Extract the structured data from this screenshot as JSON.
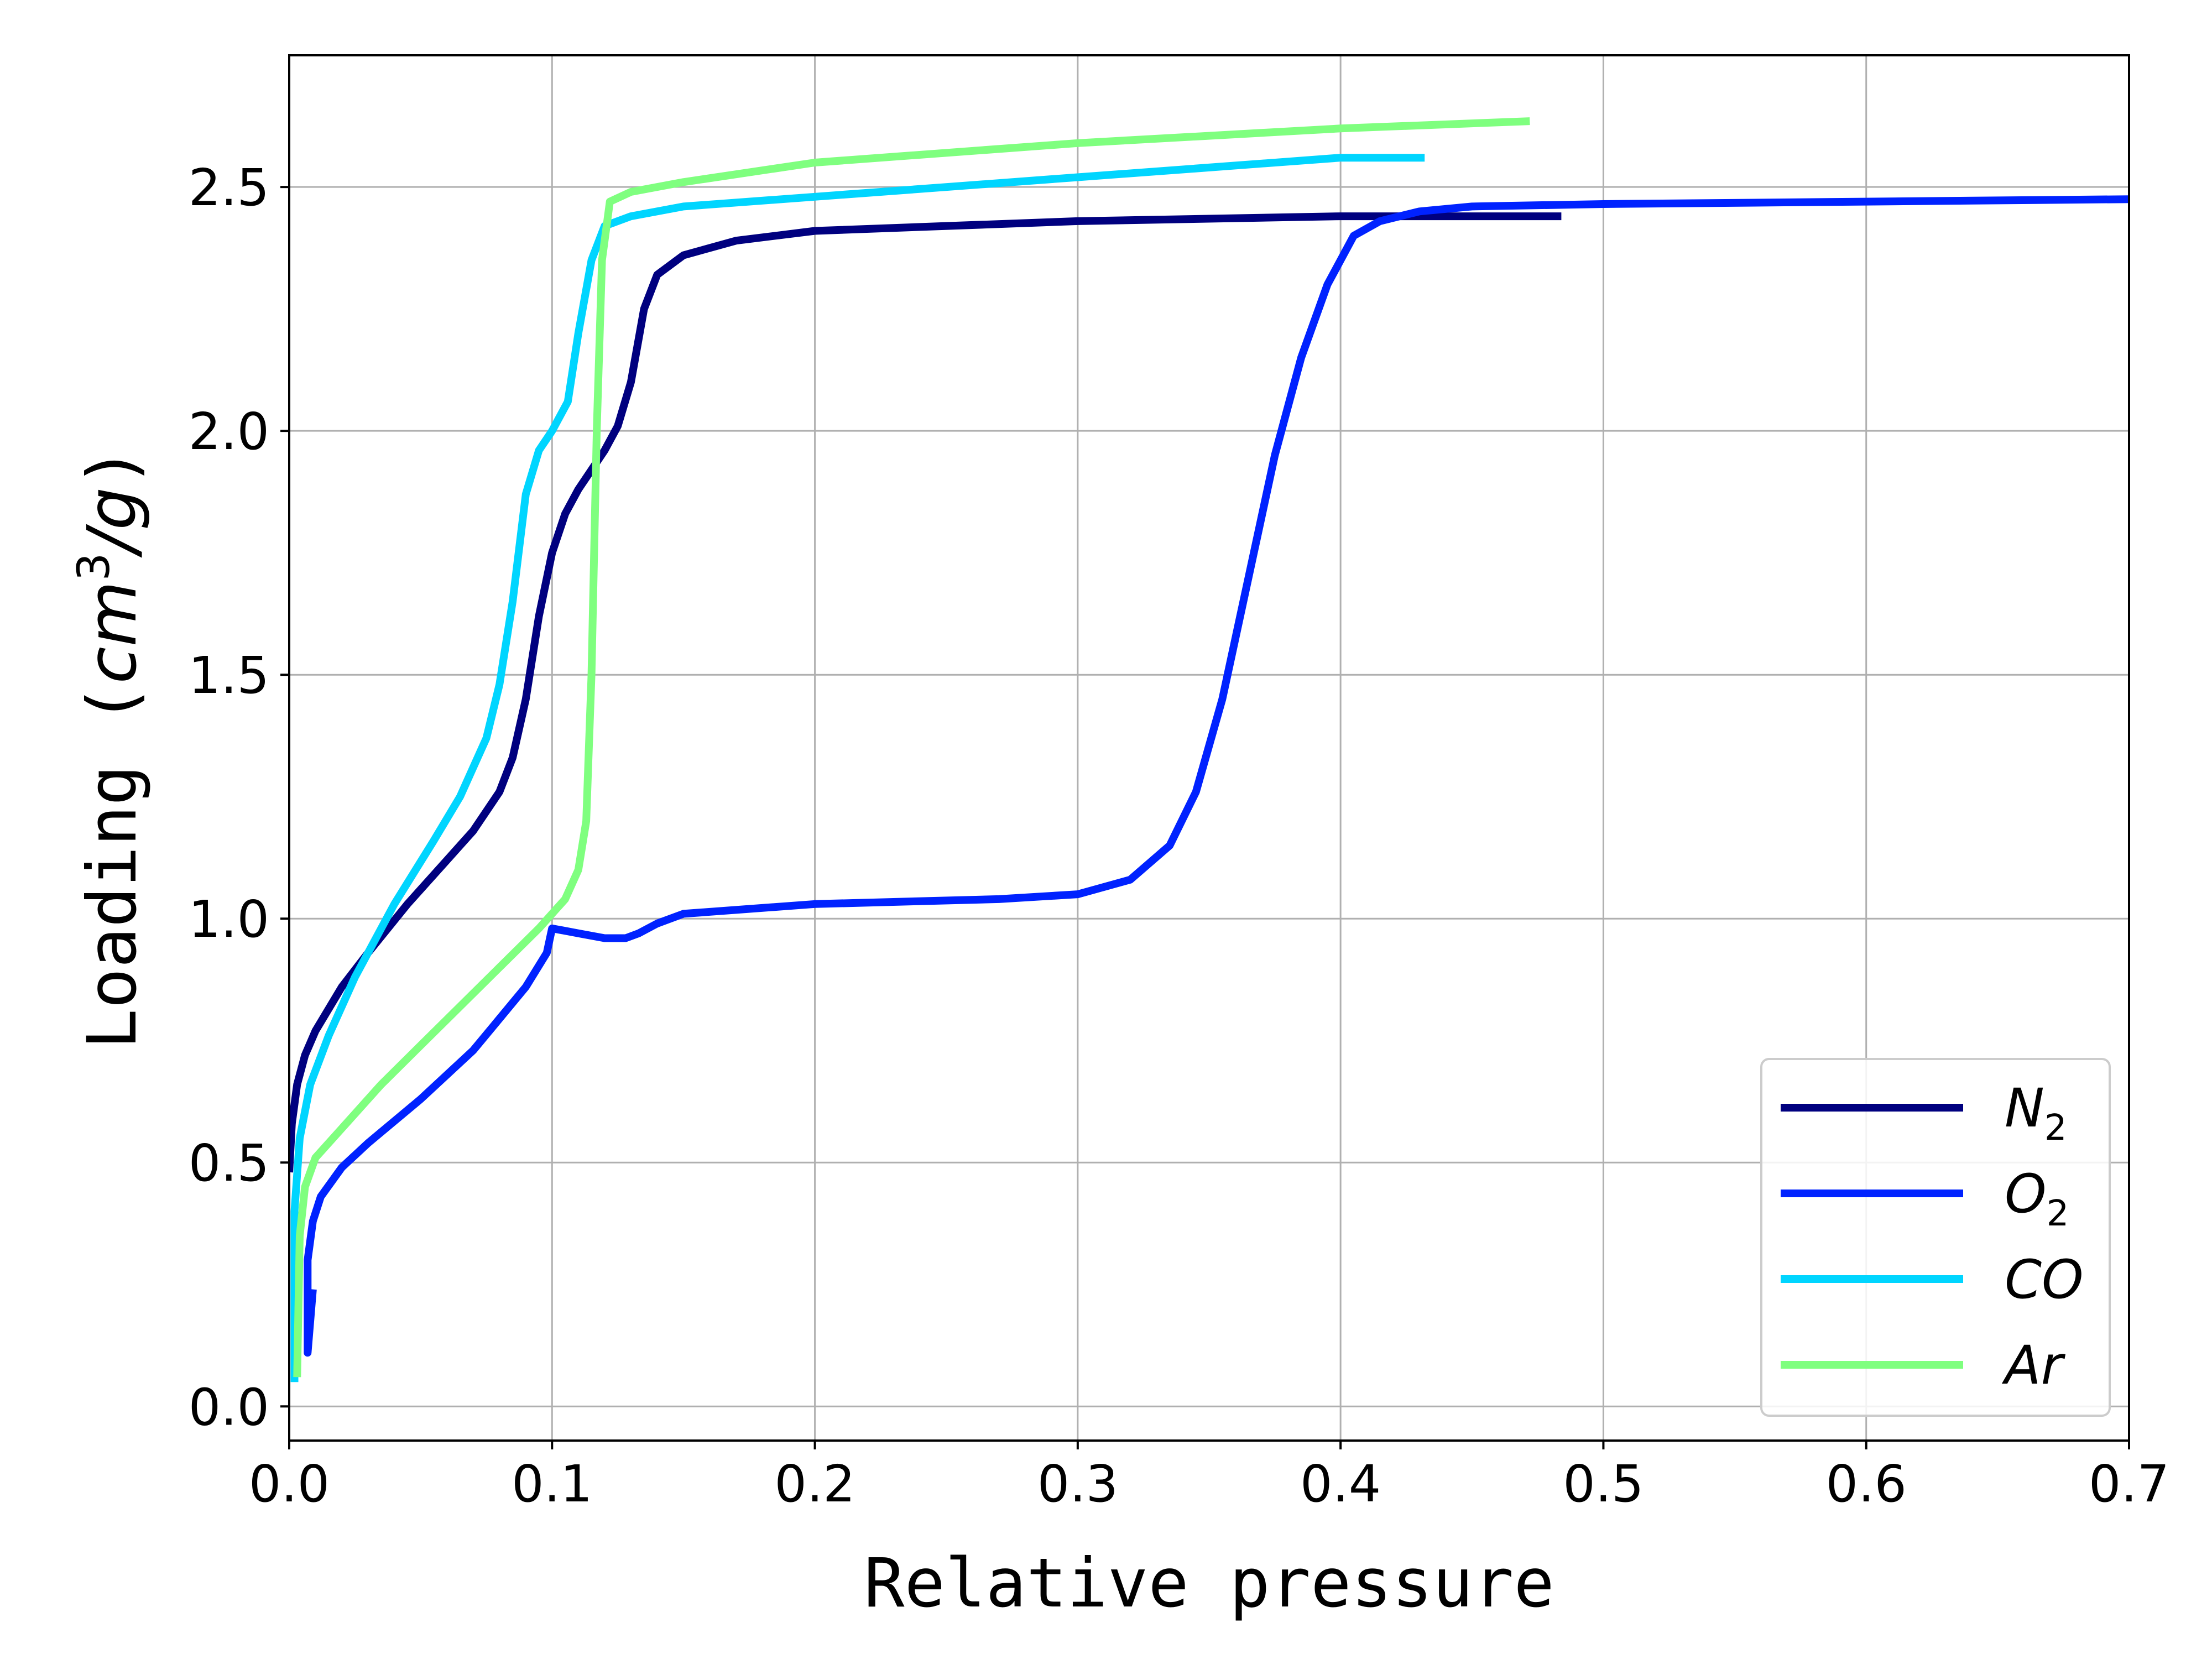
{
  "chart_data": {
    "type": "line",
    "xlabel": "Relative pressure",
    "ylabel": {
      "pre": "Loading (",
      "italic": "cm",
      "sup": "3",
      "post_italic": "/g",
      "close": ")"
    },
    "xlim": [
      0.0,
      0.7
    ],
    "ylim": [
      -0.07,
      2.77
    ],
    "x_ticks": [
      "0.0",
      "0.1",
      "0.2",
      "0.3",
      "0.4",
      "0.5",
      "0.6",
      "0.7"
    ],
    "y_ticks": [
      "0.0",
      "0.5",
      "1.0",
      "1.5",
      "2.0",
      "2.5"
    ],
    "grid": true,
    "legend_position": "lower-right",
    "series": [
      {
        "name": "N",
        "name_sub": "2",
        "color": "#00007f",
        "points": [
          [
            0.0,
            0.48
          ],
          [
            0.001,
            0.58
          ],
          [
            0.003,
            0.66
          ],
          [
            0.006,
            0.72
          ],
          [
            0.01,
            0.77
          ],
          [
            0.02,
            0.86
          ],
          [
            0.03,
            0.93
          ],
          [
            0.045,
            1.03
          ],
          [
            0.06,
            1.12
          ],
          [
            0.07,
            1.18
          ],
          [
            0.08,
            1.26
          ],
          [
            0.085,
            1.33
          ],
          [
            0.09,
            1.45
          ],
          [
            0.095,
            1.62
          ],
          [
            0.1,
            1.75
          ],
          [
            0.105,
            1.83
          ],
          [
            0.11,
            1.88
          ],
          [
            0.115,
            1.92
          ],
          [
            0.12,
            1.96
          ],
          [
            0.125,
            2.01
          ],
          [
            0.13,
            2.1
          ],
          [
            0.135,
            2.25
          ],
          [
            0.14,
            2.32
          ],
          [
            0.15,
            2.36
          ],
          [
            0.17,
            2.39
          ],
          [
            0.2,
            2.41
          ],
          [
            0.3,
            2.43
          ],
          [
            0.4,
            2.44
          ],
          [
            0.484,
            2.44
          ]
        ]
      },
      {
        "name": "O",
        "name_sub": "2",
        "color": "#0022ff",
        "points": [
          [
            0.009,
            0.24
          ],
          [
            0.007,
            0.11
          ],
          [
            0.007,
            0.3
          ],
          [
            0.009,
            0.38
          ],
          [
            0.012,
            0.43
          ],
          [
            0.02,
            0.49
          ],
          [
            0.03,
            0.54
          ],
          [
            0.05,
            0.63
          ],
          [
            0.07,
            0.73
          ],
          [
            0.09,
            0.86
          ],
          [
            0.098,
            0.93
          ],
          [
            0.1,
            0.98
          ],
          [
            0.11,
            0.97
          ],
          [
            0.12,
            0.96
          ],
          [
            0.128,
            0.96
          ],
          [
            0.133,
            0.97
          ],
          [
            0.14,
            0.99
          ],
          [
            0.15,
            1.01
          ],
          [
            0.2,
            1.03
          ],
          [
            0.27,
            1.04
          ],
          [
            0.3,
            1.05
          ],
          [
            0.32,
            1.08
          ],
          [
            0.335,
            1.15
          ],
          [
            0.345,
            1.26
          ],
          [
            0.355,
            1.45
          ],
          [
            0.365,
            1.7
          ],
          [
            0.375,
            1.95
          ],
          [
            0.385,
            2.15
          ],
          [
            0.395,
            2.3
          ],
          [
            0.405,
            2.4
          ],
          [
            0.415,
            2.43
          ],
          [
            0.43,
            2.45
          ],
          [
            0.45,
            2.46
          ],
          [
            0.5,
            2.465
          ],
          [
            0.6,
            2.47
          ],
          [
            0.7,
            2.475
          ]
        ]
      },
      {
        "name": "CO",
        "color": "#00d5ff",
        "points": [
          [
            0.002,
            0.05
          ],
          [
            0.002,
            0.4
          ],
          [
            0.004,
            0.55
          ],
          [
            0.008,
            0.66
          ],
          [
            0.015,
            0.76
          ],
          [
            0.025,
            0.88
          ],
          [
            0.04,
            1.03
          ],
          [
            0.055,
            1.16
          ],
          [
            0.065,
            1.25
          ],
          [
            0.075,
            1.37
          ],
          [
            0.08,
            1.48
          ],
          [
            0.085,
            1.65
          ],
          [
            0.09,
            1.87
          ],
          [
            0.095,
            1.96
          ],
          [
            0.1,
            2.0
          ],
          [
            0.106,
            2.06
          ],
          [
            0.11,
            2.2
          ],
          [
            0.115,
            2.35
          ],
          [
            0.12,
            2.42
          ],
          [
            0.13,
            2.44
          ],
          [
            0.15,
            2.46
          ],
          [
            0.2,
            2.48
          ],
          [
            0.25,
            2.5
          ],
          [
            0.3,
            2.52
          ],
          [
            0.35,
            2.54
          ],
          [
            0.4,
            2.56
          ],
          [
            0.432,
            2.56
          ]
        ]
      },
      {
        "name": "Ar",
        "color": "#7fff7f",
        "points": [
          [
            0.003,
            0.06
          ],
          [
            0.004,
            0.35
          ],
          [
            0.006,
            0.45
          ],
          [
            0.01,
            0.51
          ],
          [
            0.02,
            0.57
          ],
          [
            0.035,
            0.66
          ],
          [
            0.05,
            0.74
          ],
          [
            0.065,
            0.82
          ],
          [
            0.08,
            0.9
          ],
          [
            0.095,
            0.98
          ],
          [
            0.105,
            1.04
          ],
          [
            0.11,
            1.1
          ],
          [
            0.113,
            1.2
          ],
          [
            0.115,
            1.5
          ],
          [
            0.117,
            2.0
          ],
          [
            0.119,
            2.35
          ],
          [
            0.122,
            2.47
          ],
          [
            0.13,
            2.49
          ],
          [
            0.15,
            2.51
          ],
          [
            0.2,
            2.55
          ],
          [
            0.3,
            2.59
          ],
          [
            0.4,
            2.62
          ],
          [
            0.472,
            2.635
          ]
        ]
      }
    ]
  }
}
